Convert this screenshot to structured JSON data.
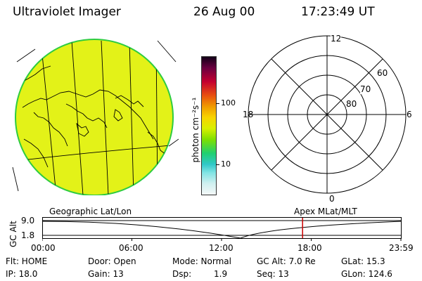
{
  "header": {
    "instrument": "Ultraviolet Imager",
    "date": "26 Aug 00",
    "time": "17:23:49 UT"
  },
  "colorbar": {
    "unit_label": "photon cm⁻²s⁻¹",
    "tick_100": "100",
    "tick_10": "10"
  },
  "polar": {
    "mlt_12": "12",
    "mlt_18": "18",
    "mlt_6": "6",
    "mlt_0": "0",
    "lat_60": "60",
    "lat_70": "70",
    "lat_80": "80"
  },
  "timeline": {
    "left_label": "Geographic Lat/Lon",
    "right_label": "Apex MLat/MLT",
    "axis_label": "GC Alt",
    "y_top": "9.0",
    "y_bottom": "1.8",
    "ticks": [
      "00:00",
      "06:00",
      "12:00",
      "18:00",
      "23:59"
    ],
    "current_time_fraction": 0.7245
  },
  "status": {
    "flt": "Flt: HOME",
    "ip": "IP: 18.0",
    "door": "Door: Open",
    "gain": "Gain: 13",
    "mode": "Mode: Normal",
    "dsp_label": "Dsp:",
    "dsp_value": "1.9",
    "gc_alt": "GC Alt: 7.0 Re",
    "seq": "Seq: 13",
    "glat": "GLat: 15.3",
    "glon": "GLon: 124.6"
  },
  "colors": {
    "map_fill": "#e3f218",
    "map_edge": "#2ecc40",
    "marker": "#cc0000"
  }
}
